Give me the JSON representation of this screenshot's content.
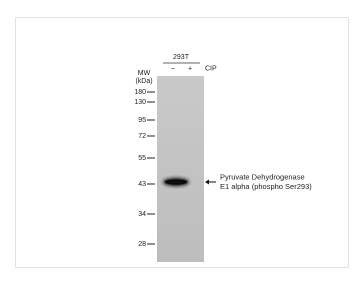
{
  "header": {
    "cell_line": "293T",
    "lanes": [
      "–",
      "+"
    ],
    "treatment": "CIP"
  },
  "mw_label": [
    "MW",
    "(kDa)"
  ],
  "markers": [
    180,
    130,
    95,
    72,
    55,
    43,
    34,
    28
  ],
  "target_label": [
    "Pyruvate Dehydrogenase",
    "E1 alpha (phospho  Ser293)"
  ]
}
